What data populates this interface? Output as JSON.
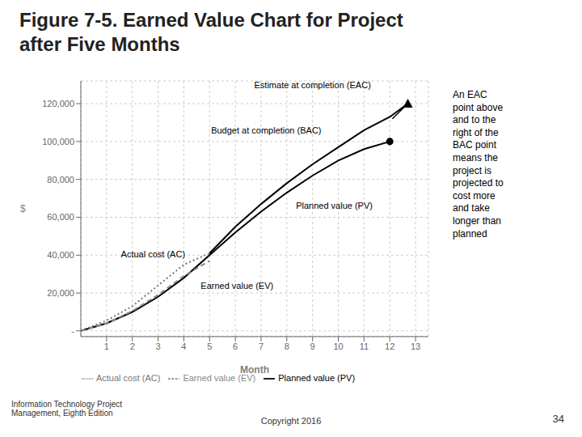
{
  "chart_data": {
    "type": "line",
    "title": "Figure 7-5. Earned Value Chart for Project\nafter Five Months",
    "xlabel": "Month",
    "ylabel": "$",
    "xlim": [
      0.0,
      13.5
    ],
    "xticks": [
      1,
      2,
      3,
      4,
      5,
      6,
      7,
      8,
      9,
      10,
      11,
      12,
      13
    ],
    "ylim": [
      -3000,
      132000
    ],
    "yticks": [
      {
        "value": 0,
        "label": "-"
      },
      {
        "value": 20000,
        "label": "20,000"
      },
      {
        "value": 40000,
        "label": "40,000"
      },
      {
        "value": 60000,
        "label": "60,000"
      },
      {
        "value": 80000,
        "label": "80,000"
      },
      {
        "value": 100000,
        "label": "100,000"
      },
      {
        "value": 120000,
        "label": "120,000"
      }
    ],
    "grid": true,
    "legend": "bottom",
    "series": [
      {
        "name": "Actual cost (AC)",
        "color": "#777777",
        "line_style": "dotted",
        "x": [
          0,
          1,
          2,
          3,
          4,
          5
        ],
        "values": [
          0,
          5500,
          13000,
          24000,
          35000,
          41000
        ]
      },
      {
        "name": "Planned value (PV)",
        "color": "#000000",
        "line_style": "solid",
        "x": [
          0,
          1,
          2,
          3,
          4,
          5,
          6,
          7,
          8,
          9,
          10,
          11,
          12
        ],
        "values": [
          0,
          4000,
          10000,
          18000,
          28000,
          40000,
          52000,
          63000,
          73000,
          82000,
          90000,
          96000,
          100000
        ]
      },
      {
        "name": "Earned value (EV)",
        "color": "#888888",
        "line_style": "dashed",
        "x": [
          0,
          1,
          2,
          3,
          4,
          5
        ],
        "values": [
          0,
          4000,
          10500,
          19000,
          29000,
          37000
        ]
      },
      {
        "color": "#000000",
        "line_style": "solid",
        "x": [
          5,
          6,
          7,
          8,
          9,
          10,
          11,
          12,
          12.7
        ],
        "values": [
          41000,
          55000,
          67000,
          78000,
          88000,
          97000,
          106000,
          113000,
          120000
        ]
      }
    ],
    "points": [
      {
        "x": 12,
        "y": 100000,
        "marker": "circle",
        "color": "#000000"
      },
      {
        "x": 12.7,
        "y": 120000,
        "marker": "triangle",
        "color": "#000000"
      }
    ],
    "arrows": [
      {
        "x_start": 12.1,
        "y_start": 112000,
        "x_end": 12.7,
        "y_end": 120000,
        "color": "#000000"
      }
    ],
    "annotations": [
      {
        "text": "Estimate at completion (EAC)",
        "x": 9.0,
        "y": 126000,
        "align": "center"
      },
      {
        "text": "Budget at completion (BAC)",
        "x": 7.2,
        "y": 102000,
        "align": "center"
      },
      {
        "text": "Planned value (PV)",
        "x": 8.2,
        "y": 66000,
        "align": "left"
      },
      {
        "text": "Actual cost (AC)",
        "x": 1.4,
        "y": 40500,
        "align": "left"
      },
      {
        "text": "Earned value (EV)",
        "x": 4.5,
        "y": 24000,
        "align": "left"
      }
    ],
    "sidebar_text": "An EAC\npoint above\nand to the\nright of the\nBAC point\nmeans the\nproject is\nprojected to\ncost more\nand take\nlonger than\nplanned",
    "footer": [
      "Information Technology Project\nManagement, Eighth Edition",
      "Copyright 2016",
      "34"
    ]
  }
}
